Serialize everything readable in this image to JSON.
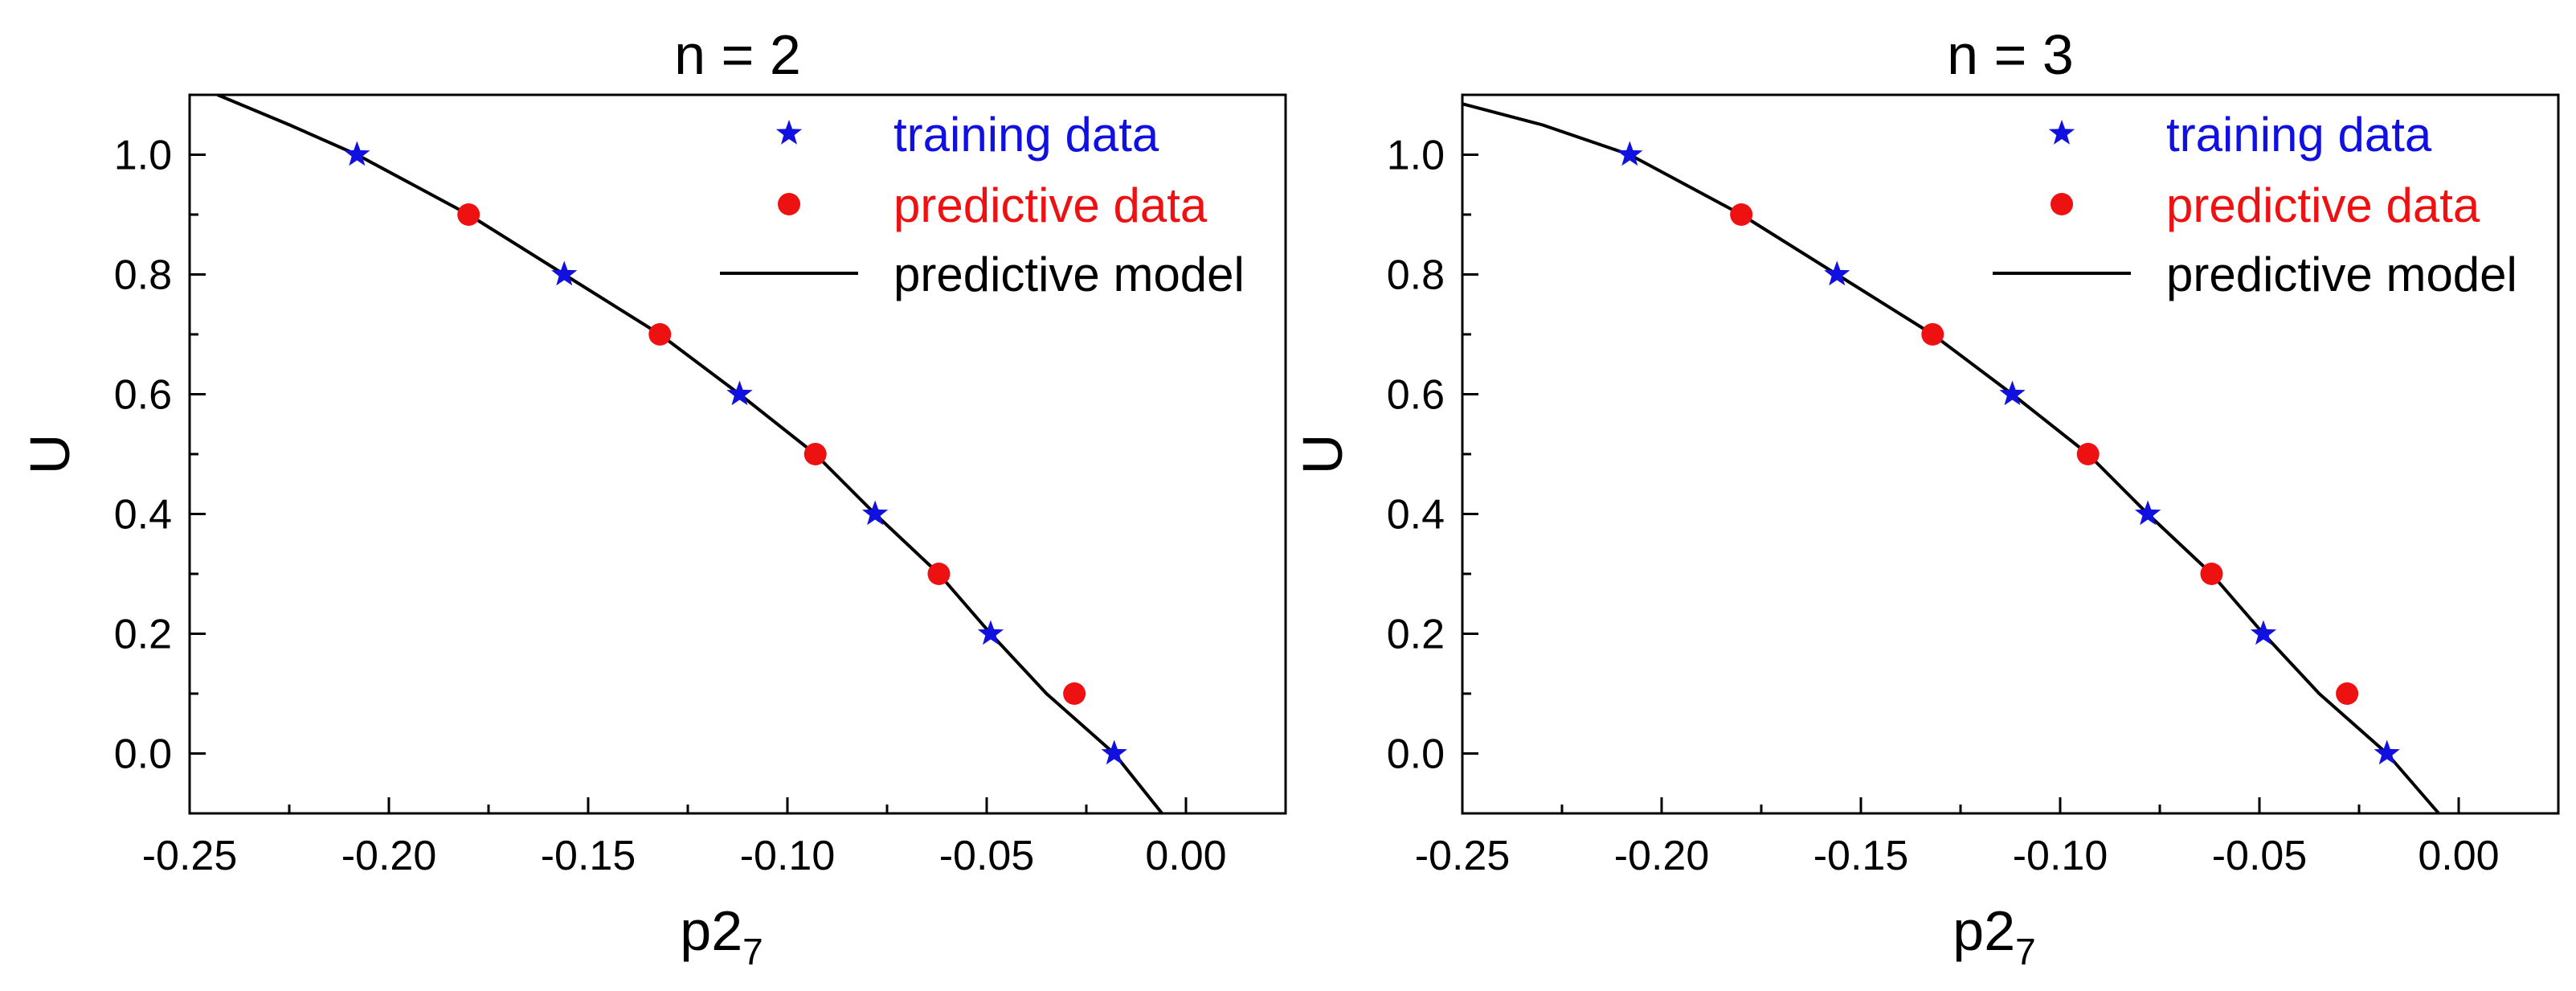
{
  "chart_data": [
    {
      "type": "line",
      "title": "n = 2",
      "xlabel": "p2",
      "xlabel_subscript": "7",
      "ylabel": "U",
      "xlim": [
        -0.25,
        0.025
      ],
      "ylim": [
        -0.1,
        1.1
      ],
      "xticks": [
        -0.25,
        -0.2,
        -0.15,
        -0.1,
        -0.05,
        0.0
      ],
      "xtick_labels": [
        "-0.25",
        "-0.20",
        "-0.15",
        "-0.10",
        "-0.05",
        "0.00"
      ],
      "yticks": [
        0.0,
        0.2,
        0.4,
        0.6,
        0.8,
        1.0
      ],
      "ytick_labels": [
        "0.0",
        "0.2",
        "0.4",
        "0.6",
        "0.8",
        "1.0"
      ],
      "legend_position": "top-right",
      "series": [
        {
          "name": "training data",
          "kind": "scatter",
          "marker": "star",
          "color": "#1010e0",
          "x": [
            -0.208,
            -0.156,
            -0.112,
            -0.078,
            -0.049,
            -0.018
          ],
          "y": [
            1.0,
            0.8,
            0.6,
            0.4,
            0.2,
            0.0
          ]
        },
        {
          "name": "predictive data",
          "kind": "scatter",
          "marker": "circle",
          "color": "#ee1111",
          "x": [
            -0.18,
            -0.132,
            -0.093,
            -0.062,
            -0.028
          ],
          "y": [
            0.9,
            0.7,
            0.5,
            0.3,
            0.1
          ]
        },
        {
          "name": "predictive model",
          "kind": "line",
          "color": "#000000",
          "x": [
            -0.243,
            -0.225,
            -0.208,
            -0.18,
            -0.156,
            -0.132,
            -0.112,
            -0.093,
            -0.078,
            -0.062,
            -0.049,
            -0.035,
            -0.018,
            -0.006
          ],
          "y": [
            1.1,
            1.05,
            1.0,
            0.9,
            0.8,
            0.7,
            0.6,
            0.5,
            0.4,
            0.3,
            0.2,
            0.1,
            0.0,
            -0.1
          ]
        }
      ]
    },
    {
      "type": "line",
      "title": "n = 3",
      "xlabel": "p2",
      "xlabel_subscript": "7",
      "ylabel": "U",
      "xlim": [
        -0.25,
        0.025
      ],
      "ylim": [
        -0.1,
        1.1
      ],
      "xticks": [
        -0.25,
        -0.2,
        -0.15,
        -0.1,
        -0.05,
        0.0
      ],
      "xtick_labels": [
        "-0.25",
        "-0.20",
        "-0.15",
        "-0.10",
        "-0.05",
        "0.00"
      ],
      "yticks": [
        0.0,
        0.2,
        0.4,
        0.6,
        0.8,
        1.0
      ],
      "ytick_labels": [
        "0.0",
        "0.2",
        "0.4",
        "0.6",
        "0.8",
        "1.0"
      ],
      "legend_position": "top-right",
      "series": [
        {
          "name": "training data",
          "kind": "scatter",
          "marker": "star",
          "color": "#1010e0",
          "x": [
            -0.208,
            -0.156,
            -0.112,
            -0.078,
            -0.049,
            -0.018
          ],
          "y": [
            1.0,
            0.8,
            0.6,
            0.4,
            0.2,
            0.0
          ]
        },
        {
          "name": "predictive data",
          "kind": "scatter",
          "marker": "circle",
          "color": "#ee1111",
          "x": [
            -0.18,
            -0.132,
            -0.093,
            -0.062,
            -0.028
          ],
          "y": [
            0.9,
            0.7,
            0.5,
            0.3,
            0.1
          ]
        },
        {
          "name": "predictive model",
          "kind": "line",
          "color": "#000000",
          "x": [
            -0.25,
            -0.23,
            -0.208,
            -0.18,
            -0.156,
            -0.132,
            -0.112,
            -0.093,
            -0.078,
            -0.062,
            -0.049,
            -0.035,
            -0.018,
            -0.005
          ],
          "y": [
            1.085,
            1.05,
            1.0,
            0.9,
            0.8,
            0.7,
            0.6,
            0.5,
            0.4,
            0.3,
            0.2,
            0.1,
            0.0,
            -0.1
          ]
        }
      ]
    }
  ]
}
